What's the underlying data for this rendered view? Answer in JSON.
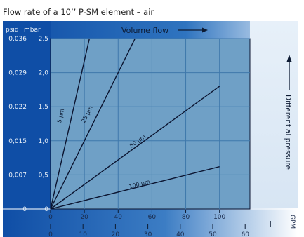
{
  "title": "Flow rate of a 10’’ P-SM element – air",
  "colors": {
    "frame_light": "#e7f0f9",
    "frame_dark": "#0f4ea6",
    "plot_fill": "#6fa0c6",
    "grid": "#3f78ab",
    "curve": "#0b1430"
  },
  "chart_data": {
    "type": "line",
    "title": "Flow rate of a 10’’ P-SM element – air",
    "xlabel": "Volume flow",
    "ylabel": "Differential pressure",
    "grid": true,
    "xlim": [
      0,
      118
    ],
    "ylim": [
      0,
      2.5
    ],
    "x_ticks_primary": [
      "0",
      "20",
      "40",
      "60",
      "80",
      "100"
    ],
    "x_ticks_primary_values": [
      0,
      20,
      40,
      60,
      80,
      100
    ],
    "x_ticks_secondary": [
      "0",
      "10",
      "20",
      "30",
      "40",
      "50",
      "60"
    ],
    "x_unit_secondary": "GPM",
    "y_ticks_mbar": [
      "0",
      "0,5",
      "1,0",
      "1,5",
      "2,0",
      "2,5"
    ],
    "y_ticks_mbar_values": [
      0,
      0.5,
      1.0,
      1.5,
      2.0,
      2.5
    ],
    "y_ticks_psid": [
      "0",
      "0,007",
      "0,015",
      "0,022",
      "0,029",
      "0,036"
    ],
    "y_unit_psid": "psid",
    "y_unit_mbar": "mbar",
    "series": [
      {
        "name": "5 µm",
        "x": [
          0,
          23
        ],
        "y": [
          0,
          2.5
        ]
      },
      {
        "name": "25 µm",
        "x": [
          0,
          50
        ],
        "y": [
          0,
          2.5
        ]
      },
      {
        "name": "50 µm",
        "x": [
          0,
          100
        ],
        "y": [
          0,
          1.8
        ]
      },
      {
        "name": "100 µm",
        "x": [
          0,
          100
        ],
        "y": [
          0,
          0.62
        ]
      }
    ]
  }
}
